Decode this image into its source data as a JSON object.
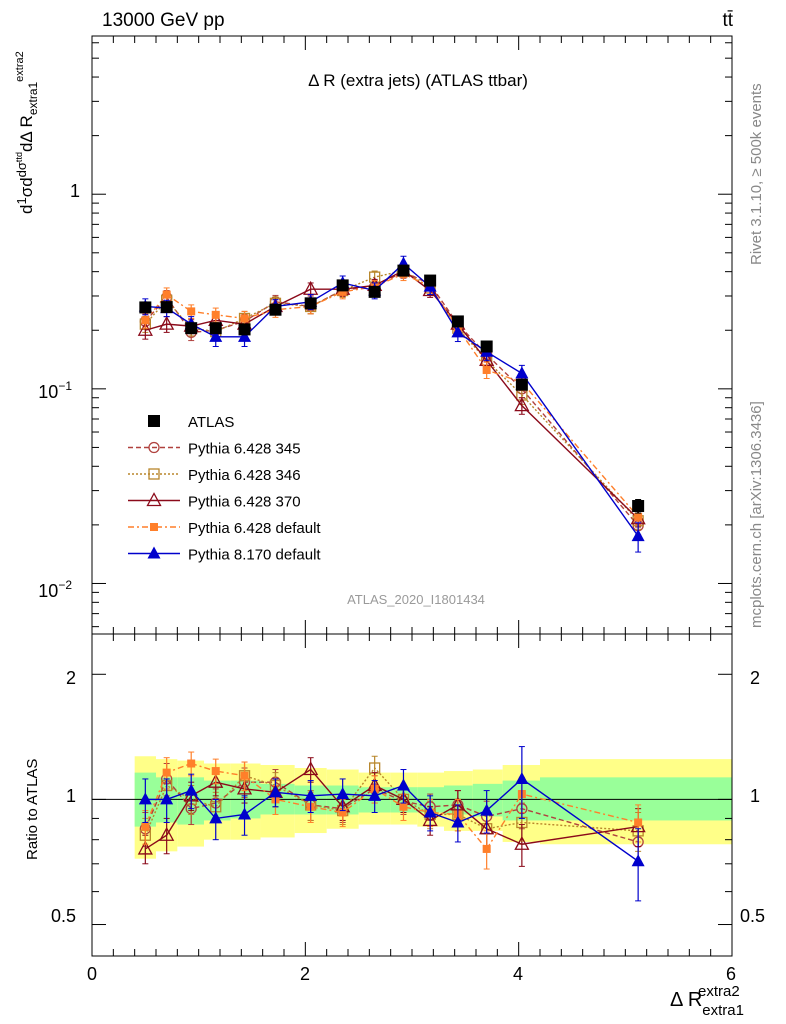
{
  "header": {
    "energy_label": "13000 GeV pp",
    "process_label": "tt̄"
  },
  "side_labels": {
    "rivet": "Rivet 3.1.10, ≥ 500k events",
    "mcplots": "mcplots.cern.ch [arXiv:1306.3436]"
  },
  "colors": {
    "data": "#000000",
    "p345": "#b0413e",
    "p346": "#b8862b",
    "p370": "#8b0a1a",
    "pdefault": "#ff7f2a",
    "p8": "#0000cc",
    "band_inner": "#99ff99",
    "band_outer": "#ffff88"
  },
  "chart_data": [
    {
      "type": "line",
      "title": "Δ R (extra jets) (ATLAS ttbar)",
      "ylabel": "dσ 1/σ d/dΔ R_extra1^extra2",
      "xlabel": "Δ R_extra1^extra2",
      "analysis_label": "ATLAS_2020_I1801434",
      "log_y": true,
      "xlim": [
        0,
        6
      ],
      "ylim": [
        0.0055,
        6.5
      ],
      "y_ticks": [
        "10^-2",
        "10^-1",
        "1"
      ],
      "x": [
        0.5,
        0.7,
        0.93,
        1.16,
        1.43,
        1.72,
        2.05,
        2.35,
        2.65,
        2.92,
        3.17,
        3.43,
        3.7,
        4.03,
        5.12
      ],
      "series": [
        {
          "name": "ATLAS",
          "color_key": "data",
          "marker": "square-filled",
          "dash": "none",
          "values": [
            0.262,
            0.263,
            0.205,
            0.205,
            0.202,
            0.255,
            0.275,
            0.34,
            0.315,
            0.405,
            0.36,
            0.222,
            0.165,
            0.105,
            0.025
          ],
          "errors": [
            0.015,
            0.015,
            0.012,
            0.012,
            0.012,
            0.012,
            0.013,
            0.015,
            0.015,
            0.018,
            0.015,
            0.01,
            0.008,
            0.006,
            0.002
          ]
        },
        {
          "name": "Pythia 6.428 345",
          "color_key": "p345",
          "marker": "circle-open",
          "dash": "5,3",
          "values": [
            0.222,
            0.295,
            0.195,
            0.2,
            0.222,
            0.28,
            0.265,
            0.322,
            0.335,
            0.4,
            0.345,
            0.215,
            0.15,
            0.1,
            0.0198
          ],
          "errors": [
            0.02,
            0.025,
            0.018,
            0.018,
            0.02,
            0.022,
            0.022,
            0.025,
            0.025,
            0.03,
            0.025,
            0.018,
            0.012,
            0.01,
            0.002
          ]
        },
        {
          "name": "Pythia 6.428 346",
          "color_key": "p346",
          "marker": "square-open",
          "dash": "2,2",
          "values": [
            0.215,
            0.285,
            0.205,
            0.197,
            0.23,
            0.275,
            0.265,
            0.32,
            0.375,
            0.405,
            0.33,
            0.205,
            0.14,
            0.093,
            0.021
          ],
          "errors": [
            0.02,
            0.025,
            0.018,
            0.018,
            0.02,
            0.022,
            0.022,
            0.025,
            0.028,
            0.03,
            0.025,
            0.018,
            0.012,
            0.01,
            0.002
          ]
        },
        {
          "name": "Pythia 6.428 370",
          "color_key": "p370",
          "marker": "triangle-open",
          "dash": "none",
          "values": [
            0.2,
            0.215,
            0.21,
            0.225,
            0.215,
            0.265,
            0.325,
            0.325,
            0.34,
            0.405,
            0.32,
            0.215,
            0.14,
            0.082,
            0.0215
          ],
          "errors": [
            0.02,
            0.02,
            0.018,
            0.02,
            0.02,
            0.022,
            0.025,
            0.025,
            0.025,
            0.03,
            0.025,
            0.018,
            0.012,
            0.008,
            0.002
          ]
        },
        {
          "name": "Pythia 6.428 default",
          "color_key": "pdefault",
          "marker": "square-small-filled",
          "dash": "6,3,2,3",
          "values": [
            0.225,
            0.305,
            0.25,
            0.24,
            0.23,
            0.255,
            0.265,
            0.315,
            0.335,
            0.39,
            0.335,
            0.205,
            0.125,
            0.108,
            0.022
          ],
          "errors": [
            0.02,
            0.025,
            0.02,
            0.02,
            0.02,
            0.022,
            0.022,
            0.025,
            0.025,
            0.03,
            0.025,
            0.018,
            0.012,
            0.01,
            0.002
          ]
        },
        {
          "name": "Pythia 8.170 default",
          "color_key": "p8",
          "marker": "triangle-filled",
          "dash": "none",
          "values": [
            0.265,
            0.26,
            0.215,
            0.185,
            0.185,
            0.265,
            0.28,
            0.35,
            0.32,
            0.44,
            0.335,
            0.195,
            0.155,
            0.12,
            0.0175
          ],
          "errors": [
            0.025,
            0.025,
            0.02,
            0.02,
            0.02,
            0.022,
            0.025,
            0.03,
            0.03,
            0.04,
            0.03,
            0.02,
            0.015,
            0.012,
            0.003
          ]
        }
      ]
    },
    {
      "type": "line",
      "ylabel": "Ratio to ATLAS",
      "xlim": [
        0,
        6
      ],
      "ylim": [
        0.42,
        2.5
      ],
      "log_y": true,
      "y_ticks": [
        "0.5",
        "1",
        "2"
      ],
      "x_ticks": [
        "0",
        "2",
        "4",
        "6"
      ],
      "band_bins": [
        [
          0.4,
          0.6
        ],
        [
          0.6,
          0.8
        ],
        [
          0.8,
          1.05
        ],
        [
          1.05,
          1.3
        ],
        [
          1.3,
          1.58
        ],
        [
          1.58,
          1.9
        ],
        [
          1.9,
          2.2
        ],
        [
          2.2,
          2.5
        ],
        [
          2.5,
          2.8
        ],
        [
          2.8,
          3.05
        ],
        [
          3.05,
          3.3
        ],
        [
          3.3,
          3.57
        ],
        [
          3.57,
          3.85
        ],
        [
          3.85,
          4.2
        ],
        [
          4.2,
          6.0
        ]
      ],
      "band_inner": [
        [
          0.86,
          1.16
        ],
        [
          0.88,
          1.13
        ],
        [
          0.87,
          1.13
        ],
        [
          0.89,
          1.11
        ],
        [
          0.9,
          1.11
        ],
        [
          0.92,
          1.09
        ],
        [
          0.92,
          1.08
        ],
        [
          0.92,
          1.08
        ],
        [
          0.93,
          1.07
        ],
        [
          0.93,
          1.07
        ],
        [
          0.93,
          1.07
        ],
        [
          0.92,
          1.08
        ],
        [
          0.91,
          1.09
        ],
        [
          0.89,
          1.11
        ],
        [
          0.89,
          1.13
        ]
      ],
      "band_outer": [
        [
          0.72,
          1.27
        ],
        [
          0.75,
          1.25
        ],
        [
          0.77,
          1.24
        ],
        [
          0.8,
          1.22
        ],
        [
          0.8,
          1.22
        ],
        [
          0.81,
          1.21
        ],
        [
          0.83,
          1.19
        ],
        [
          0.85,
          1.18
        ],
        [
          0.87,
          1.16
        ],
        [
          0.87,
          1.16
        ],
        [
          0.86,
          1.16
        ],
        [
          0.84,
          1.17
        ],
        [
          0.84,
          1.18
        ],
        [
          0.79,
          1.21
        ],
        [
          0.78,
          1.25
        ]
      ],
      "x": [
        0.5,
        0.7,
        0.93,
        1.16,
        1.43,
        1.72,
        2.05,
        2.35,
        2.65,
        2.92,
        3.17,
        3.43,
        3.7,
        4.03,
        5.12
      ],
      "reference_value": 1,
      "series": [
        {
          "name": "Pythia 6.428 345",
          "color_key": "p345",
          "marker": "circle-open",
          "dash": "5,3",
          "values": [
            0.85,
            1.12,
            0.95,
            0.98,
            1.1,
            1.1,
            0.97,
            0.95,
            1.06,
            0.99,
            0.96,
            0.97,
            0.91,
            0.95,
            0.79
          ],
          "errors": [
            0.08,
            0.1,
            0.08,
            0.08,
            0.09,
            0.08,
            0.08,
            0.07,
            0.08,
            0.07,
            0.07,
            0.08,
            0.08,
            0.1,
            0.09
          ]
        },
        {
          "name": "Pythia 6.428 346",
          "color_key": "p346",
          "marker": "square-open",
          "dash": "2,2",
          "values": [
            0.82,
            1.08,
            1.0,
            0.96,
            1.14,
            1.08,
            0.97,
            0.94,
            1.19,
            1.0,
            0.92,
            0.92,
            0.85,
            0.88,
            0.84
          ],
          "errors": [
            0.08,
            0.1,
            0.08,
            0.08,
            0.09,
            0.08,
            0.08,
            0.07,
            0.08,
            0.07,
            0.07,
            0.08,
            0.08,
            0.1,
            0.09
          ]
        },
        {
          "name": "Pythia 6.428 370",
          "color_key": "p370",
          "marker": "triangle-open",
          "dash": "none",
          "values": [
            0.76,
            0.82,
            1.02,
            1.1,
            1.06,
            1.04,
            1.18,
            0.96,
            1.08,
            1.0,
            0.89,
            0.97,
            0.85,
            0.78,
            0.86
          ],
          "errors": [
            0.06,
            0.08,
            0.08,
            0.08,
            0.08,
            0.08,
            0.08,
            0.07,
            0.08,
            0.07,
            0.07,
            0.08,
            0.08,
            0.09,
            0.09
          ]
        },
        {
          "name": "Pythia 6.428 default",
          "color_key": "pdefault",
          "marker": "square-small-filled",
          "dash": "6,3,2,3",
          "values": [
            0.86,
            1.16,
            1.22,
            1.17,
            1.14,
            1.0,
            0.96,
            0.93,
            1.06,
            0.96,
            0.93,
            0.92,
            0.76,
            1.03,
            0.88
          ],
          "errors": [
            0.08,
            0.1,
            0.08,
            0.08,
            0.09,
            0.08,
            0.08,
            0.07,
            0.08,
            0.07,
            0.07,
            0.08,
            0.08,
            0.1,
            0.09
          ]
        },
        {
          "name": "Pythia 8.170 default",
          "color_key": "p8",
          "marker": "triangle-filled",
          "dash": "none",
          "values": [
            1.0,
            1.0,
            1.05,
            0.9,
            0.92,
            1.04,
            1.02,
            1.03,
            1.02,
            1.08,
            0.93,
            0.88,
            0.94,
            1.12,
            0.71
          ],
          "errors": [
            0.12,
            0.12,
            0.1,
            0.1,
            0.1,
            0.08,
            0.09,
            0.09,
            0.09,
            0.1,
            0.09,
            0.09,
            0.11,
            0.22,
            0.14
          ]
        }
      ]
    }
  ]
}
